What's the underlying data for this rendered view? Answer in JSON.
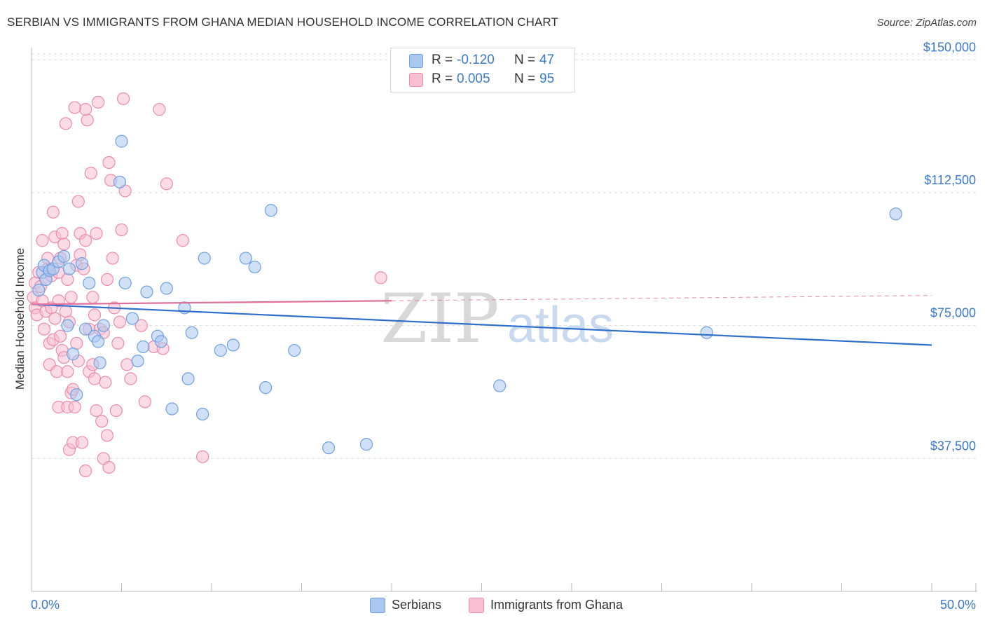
{
  "title": "SERBIAN VS IMMIGRANTS FROM GHANA MEDIAN HOUSEHOLD INCOME CORRELATION CHART",
  "source": "Source: ZipAtlas.com",
  "watermark": {
    "zip": "ZIP",
    "atlas": "atlas"
  },
  "legend": {
    "rows": [
      {
        "r_label": "R =",
        "r_value": "-0.120",
        "n_label": "N =",
        "n_value": "47",
        "color": "#a9c8f0",
        "border": "#6f9fe0"
      },
      {
        "r_label": "R =",
        "r_value": "0.005",
        "n_label": "N =",
        "n_value": "95",
        "color": "#f8bfd2",
        "border": "#ee8aab"
      }
    ]
  },
  "bottom_legend": [
    {
      "label": "Serbians",
      "color": "#a9c8f0",
      "border": "#6f9fe0"
    },
    {
      "label": "Immigrants from Ghana",
      "color": "#f8bfd2",
      "border": "#ee8aab"
    }
  ],
  "chart_data": {
    "type": "scatter",
    "title": "SERBIAN VS IMMIGRANTS FROM GHANA MEDIAN HOUSEHOLD INCOME CORRELATION CHART",
    "xlabel": "",
    "ylabel": "Median Household Income",
    "xlim": [
      0,
      50
    ],
    "ylim": [
      0,
      155000
    ],
    "x_tick_labels": [
      "0.0%",
      "50.0%"
    ],
    "y_ticks": [
      {
        "value": 37500,
        "label": "$37,500"
      },
      {
        "value": 75000,
        "label": "$75,000"
      },
      {
        "value": 112500,
        "label": "$112,500"
      },
      {
        "value": 150000,
        "label": "$150,000"
      }
    ],
    "grid": true,
    "series": [
      {
        "name": "Serbians",
        "color": "#6f9fe0",
        "fill": "#a9c8f0",
        "trend": {
          "x": [
            0,
            50
          ],
          "y": [
            81000,
            69500
          ],
          "style": "solid",
          "line_color": "#2f6fcc"
        },
        "points": [
          [
            0.4,
            85000
          ],
          [
            0.6,
            90000
          ],
          [
            0.7,
            92000
          ],
          [
            0.8,
            88000
          ],
          [
            1.0,
            90500
          ],
          [
            1.2,
            91000
          ],
          [
            1.5,
            93000
          ],
          [
            1.8,
            94500
          ],
          [
            2.0,
            75000
          ],
          [
            2.8,
            92500
          ],
          [
            3.2,
            87000
          ],
          [
            3.5,
            72000
          ],
          [
            3.7,
            70500
          ],
          [
            3.8,
            64500
          ],
          [
            4.0,
            75000
          ],
          [
            3.0,
            74000
          ],
          [
            2.3,
            67000
          ],
          [
            2.5,
            55500
          ],
          [
            4.9,
            115500
          ],
          [
            5.0,
            127000
          ],
          [
            5.2,
            87000
          ],
          [
            5.6,
            77000
          ],
          [
            5.9,
            65000
          ],
          [
            6.2,
            69000
          ],
          [
            6.4,
            84500
          ],
          [
            7.0,
            72000
          ],
          [
            7.2,
            70500
          ],
          [
            7.5,
            85500
          ],
          [
            7.8,
            51500
          ],
          [
            8.5,
            80000
          ],
          [
            8.7,
            60000
          ],
          [
            8.9,
            73000
          ],
          [
            9.5,
            50000
          ],
          [
            9.6,
            94000
          ],
          [
            10.5,
            68000
          ],
          [
            11.2,
            69500
          ],
          [
            11.9,
            94000
          ],
          [
            12.4,
            91500
          ],
          [
            13.0,
            57500
          ],
          [
            13.3,
            107500
          ],
          [
            14.6,
            68000
          ],
          [
            16.5,
            40500
          ],
          [
            18.6,
            41500
          ],
          [
            26.0,
            58000
          ],
          [
            37.5,
            73000
          ],
          [
            48.0,
            106500
          ],
          [
            2.1,
            91000
          ]
        ]
      },
      {
        "name": "Immigrants from Ghana",
        "color": "#ee8aab",
        "fill": "#f8bfd2",
        "trend": {
          "x": [
            0,
            20,
            50
          ],
          "y": [
            81000,
            82000,
            83500
          ],
          "style": "solid-then-dashed",
          "dash_from": 20,
          "line_color": "#e0709a"
        },
        "points": [
          [
            0.1,
            83000
          ],
          [
            0.2,
            80000
          ],
          [
            0.2,
            87000
          ],
          [
            0.3,
            78000
          ],
          [
            0.4,
            90000
          ],
          [
            0.5,
            86000
          ],
          [
            0.6,
            82000
          ],
          [
            0.6,
            99000
          ],
          [
            0.7,
            74000
          ],
          [
            0.8,
            79000
          ],
          [
            0.8,
            88000
          ],
          [
            0.9,
            91000
          ],
          [
            1.0,
            70000
          ],
          [
            1.0,
            64000
          ],
          [
            1.1,
            80000
          ],
          [
            1.1,
            89000
          ],
          [
            1.2,
            71000
          ],
          [
            1.2,
            107000
          ],
          [
            1.3,
            77000
          ],
          [
            1.3,
            100000
          ],
          [
            1.4,
            62000
          ],
          [
            1.5,
            82000
          ],
          [
            1.5,
            52000
          ],
          [
            1.6,
            72000
          ],
          [
            1.6,
            94000
          ],
          [
            1.7,
            68000
          ],
          [
            1.7,
            101000
          ],
          [
            1.8,
            66000
          ],
          [
            1.8,
            98000
          ],
          [
            1.9,
            79000
          ],
          [
            1.9,
            132000
          ],
          [
            2.0,
            62000
          ],
          [
            2.0,
            52000
          ],
          [
            2.0,
            88000
          ],
          [
            2.1,
            76000
          ],
          [
            2.1,
            40000
          ],
          [
            2.2,
            56000
          ],
          [
            2.2,
            83000
          ],
          [
            2.3,
            42000
          ],
          [
            2.3,
            57000
          ],
          [
            2.4,
            52000
          ],
          [
            2.5,
            70000
          ],
          [
            2.5,
            92000
          ],
          [
            2.6,
            110000
          ],
          [
            2.6,
            65000
          ],
          [
            2.7,
            101000
          ],
          [
            2.7,
            95000
          ],
          [
            2.8,
            42000
          ],
          [
            2.9,
            91000
          ],
          [
            3.0,
            99000
          ],
          [
            3.0,
            34000
          ],
          [
            3.1,
            133000
          ],
          [
            3.2,
            62000
          ],
          [
            3.2,
            74000
          ],
          [
            3.3,
            118000
          ],
          [
            3.4,
            83000
          ],
          [
            3.4,
            64000
          ],
          [
            3.5,
            78000
          ],
          [
            3.5,
            60000
          ],
          [
            3.6,
            101000
          ],
          [
            3.6,
            51000
          ],
          [
            3.7,
            138000
          ],
          [
            3.8,
            74000
          ],
          [
            3.9,
            48000
          ],
          [
            4.0,
            73000
          ],
          [
            4.0,
            37500
          ],
          [
            4.1,
            59000
          ],
          [
            4.2,
            44000
          ],
          [
            4.2,
            88000
          ],
          [
            4.3,
            121000
          ],
          [
            4.3,
            35000
          ],
          [
            4.4,
            116000
          ],
          [
            4.5,
            94000
          ],
          [
            4.6,
            80000
          ],
          [
            4.7,
            51000
          ],
          [
            4.8,
            70000
          ],
          [
            4.9,
            76000
          ],
          [
            5.0,
            102000
          ],
          [
            5.1,
            139000
          ],
          [
            5.2,
            113000
          ],
          [
            5.3,
            64000
          ],
          [
            5.5,
            60000
          ],
          [
            6.1,
            75000
          ],
          [
            6.3,
            53500
          ],
          [
            6.8,
            69000
          ],
          [
            7.1,
            136000
          ],
          [
            7.3,
            68500
          ],
          [
            7.5,
            115000
          ],
          [
            8.4,
            99000
          ],
          [
            9.5,
            38000
          ],
          [
            19.4,
            88500
          ],
          [
            3.0,
            136000
          ],
          [
            1.5,
            90000
          ],
          [
            2.4,
            136500
          ],
          [
            0.9,
            94000
          ]
        ]
      }
    ]
  }
}
